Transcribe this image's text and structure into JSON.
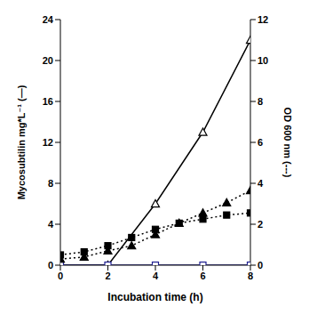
{
  "chart_data": {
    "type": "line",
    "x_label": "Incubation time (h)",
    "y_label": "Mycosubtilin mg*L⁻¹ (—)",
    "y2_label": "OD 600 nm (---)",
    "xlim": [
      0,
      8
    ],
    "xticks": [
      0,
      2,
      4,
      6,
      8
    ],
    "ylim": [
      0,
      24
    ],
    "yticks": [
      0,
      4,
      8,
      12,
      16,
      20,
      24
    ],
    "y2lim": [
      0,
      12
    ],
    "y2ticks": [
      0,
      2,
      4,
      6,
      8,
      10,
      12
    ],
    "grid": false,
    "series": [
      {
        "color": "#000000",
        "marker": "open_triangle",
        "line_style": "solid",
        "x": [
          0,
          2,
          4,
          6,
          8
        ],
        "values": [
          0,
          0,
          6,
          13,
          22
        ]
      },
      {
        "color": "#1f1f8f",
        "marker": "open_square",
        "line_style": "solid",
        "x": [
          0,
          2,
          4,
          6,
          8
        ],
        "values": [
          0,
          0,
          0,
          0,
          0
        ]
      },
      {
        "color": "#000000",
        "marker": "filled_triangle",
        "line_style": "dotted",
        "axis": "y2",
        "x": [
          0,
          1,
          2,
          3,
          4,
          5,
          6,
          7,
          8
        ],
        "values": [
          0.3,
          0.4,
          0.7,
          0.95,
          1.5,
          2.05,
          2.55,
          3.05,
          3.65
        ]
      },
      {
        "color": "#000000",
        "marker": "filled_square",
        "line_style": "dotted",
        "axis": "y2",
        "x": [
          0,
          1,
          2,
          3,
          4,
          5,
          6,
          7,
          8
        ],
        "values": [
          0.5,
          0.65,
          0.95,
          1.35,
          1.75,
          2.05,
          2.25,
          2.45,
          2.55
        ]
      }
    ]
  }
}
